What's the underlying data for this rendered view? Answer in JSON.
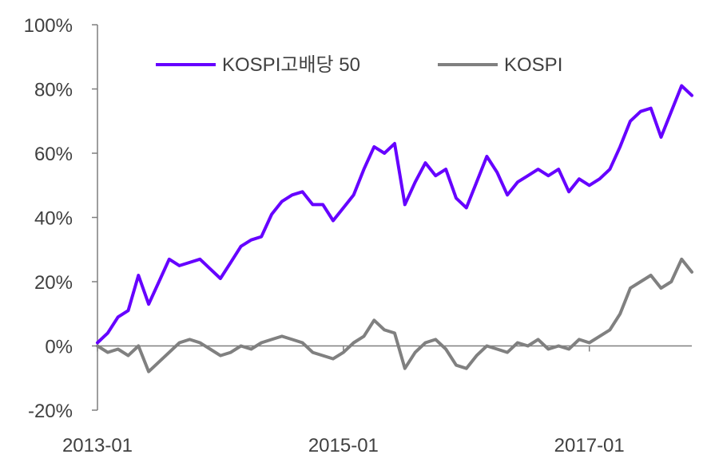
{
  "chart_data": {
    "type": "line",
    "title": "",
    "xlabel": "",
    "ylabel": "",
    "x_ticks": [
      "2013-01",
      "2015-01",
      "2017-01"
    ],
    "y_ticks": [
      "100%",
      "80%",
      "60%",
      "40%",
      "20%",
      "0%",
      "-20%"
    ],
    "ylim": [
      -20,
      100
    ],
    "xlim": [
      "2013-01",
      "2017-11"
    ],
    "grid": false,
    "legend": "top",
    "series": [
      {
        "name": "KOSPI고배당 50",
        "color": "#6600ff",
        "x": [
          "2013-01",
          "2013-02",
          "2013-03",
          "2013-04",
          "2013-05",
          "2013-06",
          "2013-07",
          "2013-08",
          "2013-09",
          "2013-10",
          "2013-11",
          "2013-12",
          "2014-01",
          "2014-02",
          "2014-03",
          "2014-04",
          "2014-05",
          "2014-06",
          "2014-07",
          "2014-08",
          "2014-09",
          "2014-10",
          "2014-11",
          "2014-12",
          "2015-01",
          "2015-02",
          "2015-03",
          "2015-04",
          "2015-05",
          "2015-06",
          "2015-07",
          "2015-08",
          "2015-09",
          "2015-10",
          "2015-11",
          "2015-12",
          "2016-01",
          "2016-02",
          "2016-03",
          "2016-04",
          "2016-05",
          "2016-06",
          "2016-07",
          "2016-08",
          "2016-09",
          "2016-10",
          "2016-11",
          "2016-12",
          "2017-01",
          "2017-02",
          "2017-03",
          "2017-04",
          "2017-05",
          "2017-06",
          "2017-07",
          "2017-08",
          "2017-09",
          "2017-10",
          "2017-11"
        ],
        "values": [
          1,
          4,
          9,
          11,
          22,
          13,
          20,
          27,
          25,
          26,
          27,
          24,
          21,
          26,
          31,
          33,
          34,
          41,
          45,
          47,
          48,
          44,
          44,
          39,
          43,
          47,
          55,
          62,
          60,
          63,
          44,
          51,
          57,
          53,
          55,
          46,
          43,
          51,
          59,
          54,
          47,
          51,
          53,
          55,
          53,
          55,
          48,
          52,
          50,
          52,
          55,
          62,
          70,
          73,
          74,
          65,
          73,
          81,
          78
        ]
      },
      {
        "name": "KOSPI",
        "color": "#808080",
        "x": [
          "2013-01",
          "2013-02",
          "2013-03",
          "2013-04",
          "2013-05",
          "2013-06",
          "2013-07",
          "2013-08",
          "2013-09",
          "2013-10",
          "2013-11",
          "2013-12",
          "2014-01",
          "2014-02",
          "2014-03",
          "2014-04",
          "2014-05",
          "2014-06",
          "2014-07",
          "2014-08",
          "2014-09",
          "2014-10",
          "2014-11",
          "2014-12",
          "2015-01",
          "2015-02",
          "2015-03",
          "2015-04",
          "2015-05",
          "2015-06",
          "2015-07",
          "2015-08",
          "2015-09",
          "2015-10",
          "2015-11",
          "2015-12",
          "2016-01",
          "2016-02",
          "2016-03",
          "2016-04",
          "2016-05",
          "2016-06",
          "2016-07",
          "2016-08",
          "2016-09",
          "2016-10",
          "2016-11",
          "2016-12",
          "2017-01",
          "2017-02",
          "2017-03",
          "2017-04",
          "2017-05",
          "2017-06",
          "2017-07",
          "2017-08",
          "2017-09",
          "2017-10",
          "2017-11"
        ],
        "values": [
          0,
          -2,
          -1,
          -3,
          0,
          -8,
          -5,
          -2,
          1,
          2,
          1,
          -1,
          -3,
          -2,
          0,
          -1,
          1,
          2,
          3,
          2,
          1,
          -2,
          -3,
          -4,
          -2,
          1,
          3,
          8,
          5,
          4,
          -7,
          -2,
          1,
          2,
          -1,
          -6,
          -7,
          -3,
          0,
          -1,
          -2,
          1,
          0,
          2,
          -1,
          0,
          -1,
          2,
          1,
          3,
          5,
          10,
          18,
          20,
          22,
          18,
          20,
          27,
          23
        ]
      }
    ]
  }
}
